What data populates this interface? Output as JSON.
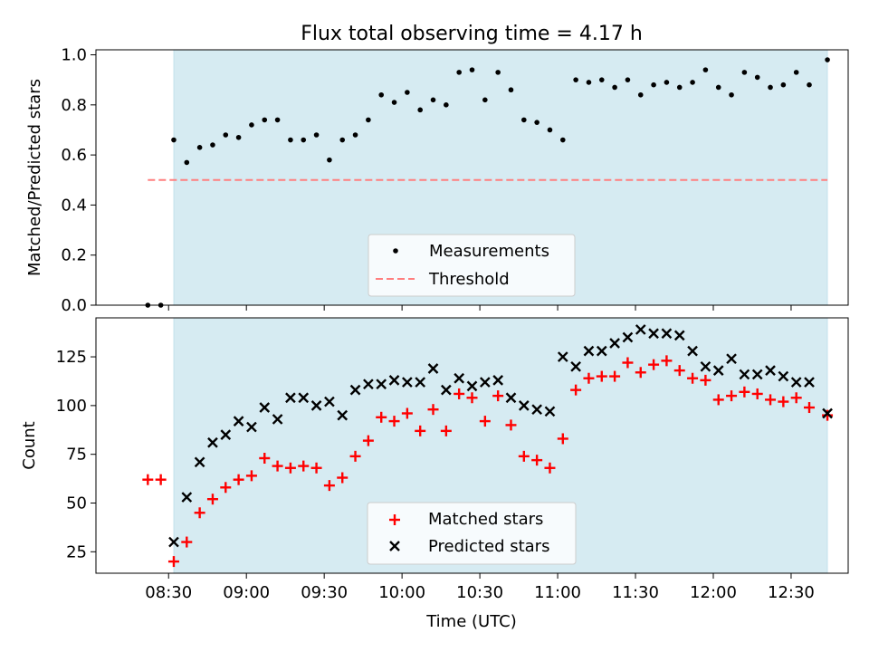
{
  "chart_data": [
    {
      "type": "scatter",
      "title": "Flux total observing time = 4.17 h",
      "xlabel": "",
      "ylabel": "Matched/Predicted stars",
      "ylim": [
        0,
        1.02
      ],
      "yticks": [
        0.0,
        0.2,
        0.4,
        0.6,
        0.8,
        1.0
      ],
      "ytick_labels": [
        "0.0",
        "0.2",
        "0.4",
        "0.6",
        "0.8",
        "1.0"
      ],
      "observing_window": {
        "start_min": 512,
        "end_min": 764
      },
      "threshold": {
        "value": 0.5,
        "start_min": 502,
        "end_min": 764,
        "color": "#ff7f7f"
      },
      "series": [
        {
          "name": "Measurements",
          "color": "#000000",
          "x": [
            502,
            507,
            512,
            517,
            522,
            527,
            532,
            537,
            542,
            547,
            552,
            557,
            562,
            567,
            572,
            577,
            582,
            587,
            592,
            597,
            602,
            607,
            612,
            617,
            622,
            627,
            632,
            637,
            642,
            647,
            652,
            657,
            662,
            667,
            672,
            677,
            682,
            687,
            692,
            697,
            702,
            707,
            712,
            717,
            722,
            727,
            732,
            737,
            742,
            747,
            752,
            757,
            764
          ],
          "y": [
            0.0,
            0.0,
            0.66,
            0.57,
            0.63,
            0.64,
            0.68,
            0.67,
            0.72,
            0.74,
            0.74,
            0.66,
            0.66,
            0.68,
            0.58,
            0.66,
            0.68,
            0.74,
            0.84,
            0.81,
            0.85,
            0.78,
            0.82,
            0.8,
            0.93,
            0.94,
            0.82,
            0.93,
            0.86,
            0.74,
            0.73,
            0.7,
            0.66,
            0.9,
            0.89,
            0.9,
            0.87,
            0.9,
            0.84,
            0.88,
            0.89,
            0.87,
            0.89,
            0.94,
            0.87,
            0.84,
            0.93,
            0.91,
            0.87,
            0.88,
            0.93,
            0.88,
            0.98
          ]
        }
      ],
      "legend": {
        "position": "lower-center",
        "entries": [
          "Measurements",
          "Threshold"
        ]
      }
    },
    {
      "type": "scatter",
      "xlabel": "Time (UTC)",
      "ylabel": "Count",
      "xlim": [
        482,
        772
      ],
      "ylim": [
        14,
        145
      ],
      "xticks": [
        510,
        540,
        570,
        600,
        630,
        660,
        690,
        720,
        750
      ],
      "xtick_labels": [
        "08:30",
        "09:00",
        "09:30",
        "10:00",
        "10:30",
        "11:00",
        "11:30",
        "12:00",
        "12:30"
      ],
      "yticks": [
        25,
        50,
        75,
        100,
        125
      ],
      "ytick_labels": [
        "25",
        "50",
        "75",
        "100",
        "125"
      ],
      "series": [
        {
          "name": "Matched stars",
          "color": "#ff0000",
          "marker": "plus",
          "x": [
            502,
            507,
            512,
            517,
            522,
            527,
            532,
            537,
            542,
            547,
            552,
            557,
            562,
            567,
            572,
            577,
            582,
            587,
            592,
            597,
            602,
            607,
            612,
            617,
            622,
            627,
            632,
            637,
            642,
            647,
            652,
            657,
            662,
            667,
            672,
            677,
            682,
            687,
            692,
            697,
            702,
            707,
            712,
            717,
            722,
            727,
            732,
            737,
            742,
            747,
            752,
            757,
            764
          ],
          "y": [
            62,
            62,
            20,
            30,
            45,
            52,
            58,
            62,
            64,
            73,
            69,
            68,
            69,
            68,
            59,
            63,
            74,
            82,
            94,
            92,
            96,
            87,
            98,
            87,
            106,
            104,
            92,
            105,
            90,
            74,
            72,
            68,
            83,
            108,
            114,
            115,
            115,
            122,
            117,
            121,
            123,
            118,
            114,
            113,
            103,
            105,
            107,
            106,
            103,
            102,
            104,
            99,
            95
          ]
        },
        {
          "name": "Predicted stars",
          "color": "#000000",
          "marker": "x",
          "x": [
            512,
            517,
            522,
            527,
            532,
            537,
            542,
            547,
            552,
            557,
            562,
            567,
            572,
            577,
            582,
            587,
            592,
            597,
            602,
            607,
            612,
            617,
            622,
            627,
            632,
            637,
            642,
            647,
            652,
            657,
            662,
            667,
            672,
            677,
            682,
            687,
            692,
            697,
            702,
            707,
            712,
            717,
            722,
            727,
            732,
            737,
            742,
            747,
            752,
            757,
            764
          ],
          "y": [
            30,
            53,
            71,
            81,
            85,
            92,
            89,
            99,
            93,
            104,
            104,
            100,
            102,
            95,
            108,
            111,
            111,
            113,
            112,
            112,
            119,
            108,
            114,
            110,
            112,
            113,
            104,
            100,
            98,
            97,
            125,
            120,
            128,
            128,
            132,
            135,
            139,
            137,
            137,
            136,
            128,
            120,
            118,
            124,
            116,
            116,
            118,
            115,
            112,
            112,
            96
          ]
        }
      ],
      "legend": {
        "position": "lower-center",
        "entries": [
          "Matched stars",
          "Predicted stars"
        ]
      }
    }
  ]
}
